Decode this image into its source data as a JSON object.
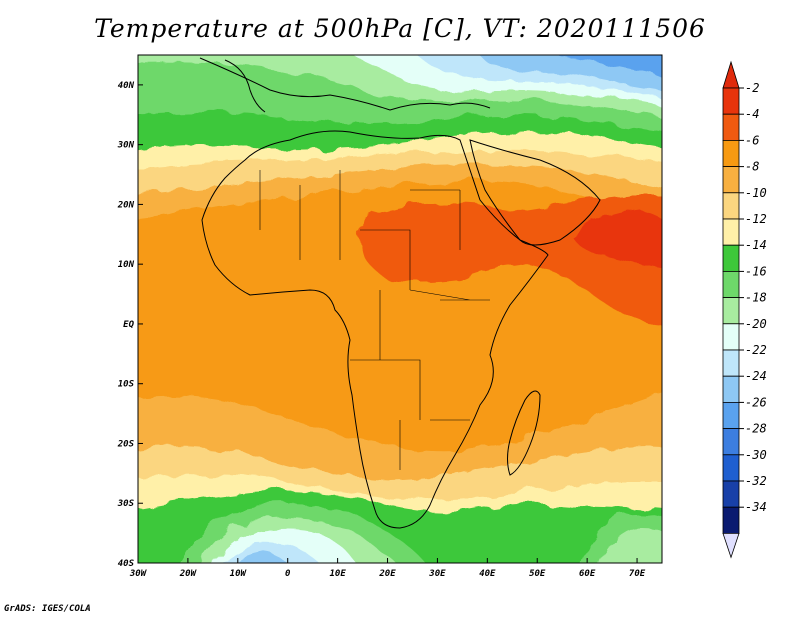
{
  "title": "Temperature at 500hPa [C], VT: 2020111506",
  "footer": "GrADS: IGES/COLA",
  "map": {
    "lon_range": [
      -30,
      75
    ],
    "lat_range": [
      -40,
      45
    ],
    "lat_ticks": [
      {
        "value": 40,
        "label": "40N"
      },
      {
        "value": 30,
        "label": "30N"
      },
      {
        "value": 20,
        "label": "20N"
      },
      {
        "value": 10,
        "label": "10N"
      },
      {
        "value": 0,
        "label": "EQ"
      },
      {
        "value": -10,
        "label": "10S"
      },
      {
        "value": -20,
        "label": "20S"
      },
      {
        "value": -30,
        "label": "30S"
      },
      {
        "value": -40,
        "label": "40S"
      }
    ],
    "lon_ticks": [
      {
        "value": -30,
        "label": "30W"
      },
      {
        "value": -20,
        "label": "20W"
      },
      {
        "value": -10,
        "label": "10W"
      },
      {
        "value": 0,
        "label": "0"
      },
      {
        "value": 10,
        "label": "10E"
      },
      {
        "value": 20,
        "label": "20E"
      },
      {
        "value": 30,
        "label": "30E"
      },
      {
        "value": 40,
        "label": "40E"
      },
      {
        "value": 50,
        "label": "50E"
      },
      {
        "value": 60,
        "label": "60E"
      },
      {
        "value": 70,
        "label": "70E"
      }
    ],
    "colors": {
      "coast": "#000000",
      "frame": "#000000"
    }
  },
  "colorbar": {
    "levels": [
      {
        "label": "-2",
        "color": "#e8340c"
      },
      {
        "label": "-4",
        "color": "#f05a10"
      },
      {
        "label": "-6",
        "color": "#f79a12"
      },
      {
        "label": "-8",
        "color": "#f8b040"
      },
      {
        "label": "-10",
        "color": "#fbd680"
      },
      {
        "label": "-12",
        "color": "#fff0a8"
      },
      {
        "label": "-14",
        "color": "#3ec83a"
      },
      {
        "label": "-16",
        "color": "#6ed86a"
      },
      {
        "label": "-18",
        "color": "#a8eca0"
      },
      {
        "label": "-20",
        "color": "#e4fff8"
      },
      {
        "label": "-22",
        "color": "#bfe6fa"
      },
      {
        "label": "-24",
        "color": "#8ec8f4"
      },
      {
        "label": "-26",
        "color": "#5aa2ee"
      },
      {
        "label": "-28",
        "color": "#3c7ee0"
      },
      {
        "label": "-30",
        "color": "#1f5fd0"
      },
      {
        "label": "-32",
        "color": "#1840a8"
      },
      {
        "label": "-34",
        "color": "#0a1a70"
      }
    ],
    "top_arrow_color": "#e02a0c",
    "bottom_arrow_color": "#e0e0ff"
  }
}
